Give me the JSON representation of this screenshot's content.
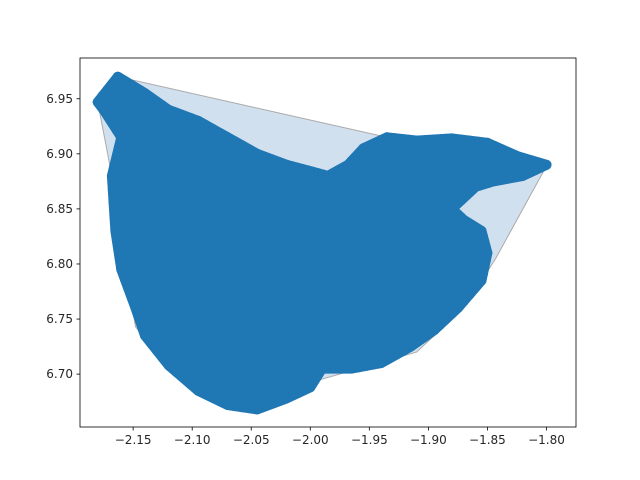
{
  "chart_data": {
    "type": "scatter",
    "title": "",
    "xlabel": "",
    "ylabel": "",
    "xlim": [
      -2.195,
      -1.775
    ],
    "ylim": [
      6.652,
      6.987
    ],
    "xticks": [
      -2.15,
      -2.1,
      -2.05,
      -2.0,
      -1.95,
      -1.9,
      -1.85,
      -1.8
    ],
    "xtick_labels": [
      "−2.15",
      "−2.10",
      "−2.05",
      "−2.00",
      "−1.95",
      "−1.90",
      "−1.85",
      "−1.80"
    ],
    "yticks": [
      6.7,
      6.75,
      6.8,
      6.85,
      6.9,
      6.95
    ],
    "ytick_labels": [
      "6.70",
      "6.75",
      "6.80",
      "6.85",
      "6.90",
      "6.95"
    ],
    "grid": false,
    "colors": {
      "points": "#1f77b4",
      "hull_fill": "#b8d0e6",
      "hull_edge": "#aaaaaa"
    },
    "convex_hull": [
      [
        -2.163,
        6.97
      ],
      [
        -1.935,
        6.915
      ],
      [
        -1.8,
        6.889
      ],
      [
        -1.843,
        6.805
      ],
      [
        -1.87,
        6.76
      ],
      [
        -1.91,
        6.72
      ],
      [
        -1.998,
        6.693
      ],
      [
        -2.045,
        6.668
      ],
      [
        -2.075,
        6.673
      ],
      [
        -2.122,
        6.71
      ],
      [
        -2.148,
        6.743
      ],
      [
        -2.168,
        6.88
      ],
      [
        -2.18,
        6.947
      ]
    ],
    "point_cloud_outline": [
      [
        -2.163,
        6.97
      ],
      [
        -2.14,
        6.955
      ],
      [
        -2.12,
        6.94
      ],
      [
        -2.095,
        6.93
      ],
      [
        -2.07,
        6.915
      ],
      [
        -2.045,
        6.9
      ],
      [
        -2.02,
        6.89
      ],
      [
        -2.002,
        6.885
      ],
      [
        -1.985,
        6.88
      ],
      [
        -1.968,
        6.89
      ],
      [
        -1.955,
        6.905
      ],
      [
        -1.935,
        6.915
      ],
      [
        -1.91,
        6.912
      ],
      [
        -1.88,
        6.914
      ],
      [
        -1.85,
        6.91
      ],
      [
        -1.825,
        6.898
      ],
      [
        -1.8,
        6.89
      ],
      [
        -1.82,
        6.88
      ],
      [
        -1.845,
        6.875
      ],
      [
        -1.86,
        6.87
      ],
      [
        -1.87,
        6.86
      ],
      [
        -1.88,
        6.85
      ],
      [
        -1.87,
        6.84
      ],
      [
        -1.855,
        6.83
      ],
      [
        -1.85,
        6.81
      ],
      [
        -1.855,
        6.785
      ],
      [
        -1.875,
        6.76
      ],
      [
        -1.895,
        6.74
      ],
      [
        -1.915,
        6.725
      ],
      [
        -1.94,
        6.71
      ],
      [
        -1.965,
        6.705
      ],
      [
        -1.99,
        6.705
      ],
      [
        -2.0,
        6.688
      ],
      [
        -2.02,
        6.678
      ],
      [
        -2.045,
        6.668
      ],
      [
        -2.07,
        6.672
      ],
      [
        -2.095,
        6.685
      ],
      [
        -2.12,
        6.708
      ],
      [
        -2.14,
        6.735
      ],
      [
        -2.148,
        6.76
      ],
      [
        -2.16,
        6.795
      ],
      [
        -2.165,
        6.83
      ],
      [
        -2.168,
        6.88
      ],
      [
        -2.16,
        6.915
      ],
      [
        -2.175,
        6.94
      ],
      [
        -2.18,
        6.947
      ]
    ]
  }
}
